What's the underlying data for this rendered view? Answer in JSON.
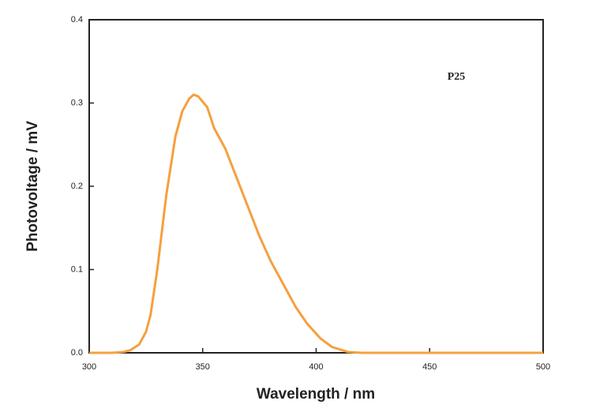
{
  "chart_data": {
    "type": "line",
    "xlabel": "Wavelength / nm",
    "ylabel": "Photovoltage / mV",
    "annotation": "P25",
    "x": [
      300,
      310,
      315,
      318,
      322,
      325,
      327,
      330,
      334,
      338,
      341,
      344,
      346,
      348,
      352,
      355,
      360,
      365,
      370,
      375,
      380,
      386,
      391,
      396,
      402,
      407,
      414,
      420,
      450,
      500
    ],
    "series": [
      {
        "name": "P25",
        "color": "#f4a040",
        "values": [
          0,
          0,
          0.001,
          0.003,
          0.01,
          0.025,
          0.045,
          0.1,
          0.19,
          0.26,
          0.29,
          0.305,
          0.31,
          0.308,
          0.295,
          0.27,
          0.245,
          0.21,
          0.175,
          0.14,
          0.11,
          0.08,
          0.055,
          0.035,
          0.017,
          0.007,
          0.001,
          0,
          0,
          0
        ]
      }
    ],
    "xlim": [
      300,
      500
    ],
    "xticks": [
      300,
      350,
      400,
      450,
      500
    ],
    "ylim": [
      0,
      0.4
    ],
    "yticks": [
      {
        "value": 0,
        "label": "0.0"
      },
      0.1,
      0.2,
      0.3,
      0.4
    ]
  }
}
